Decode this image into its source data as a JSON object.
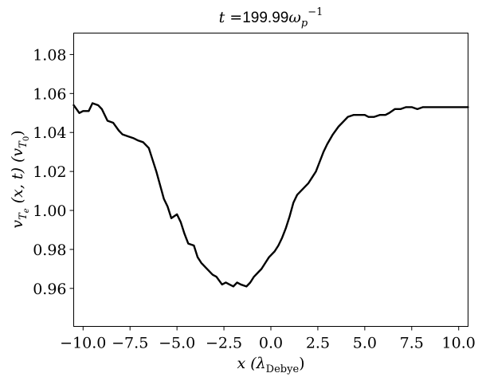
{
  "chart_data": {
    "type": "line",
    "title": {
      "prefix": "t =",
      "value": "199.99",
      "unit_base": "ω",
      "unit_sub": "p",
      "unit_sup": "−1"
    },
    "xlabel": {
      "main": "x (λ",
      "sub": "Debye",
      "close": ")"
    },
    "ylabel": {
      "part1": "v",
      "part1_sub": "T",
      "part1_subsub": "e",
      "part2": " (x, t)  (v",
      "part2_sub": "T",
      "part2_subsub": "0",
      "close": ")"
    },
    "xlim": [
      -10.5,
      10.5
    ],
    "ylim": [
      0.9405,
      1.091
    ],
    "xticks": [
      -10.0,
      -7.5,
      -5.0,
      -2.5,
      0.0,
      2.5,
      5.0,
      7.5,
      10.0
    ],
    "xtick_labels": [
      "−10.0",
      "−7.5",
      "−5.0",
      "−2.5",
      "0.0",
      "2.5",
      "5.0",
      "7.5",
      "10.0"
    ],
    "yticks": [
      0.96,
      0.98,
      1.0,
      1.02,
      1.04,
      1.06,
      1.08
    ],
    "ytick_labels": [
      "0.96",
      "0.98",
      "1.00",
      "1.02",
      "1.04",
      "1.06",
      "1.08"
    ],
    "grid": false,
    "line_color": "#000000",
    "series": [
      {
        "x": [
          -10.5,
          -10.2,
          -10.0,
          -9.7,
          -9.5,
          -9.2,
          -9.0,
          -8.7,
          -8.4,
          -8.1,
          -7.9,
          -7.6,
          -7.3,
          -7.1,
          -6.8,
          -6.5,
          -6.3,
          -6.1,
          -5.9,
          -5.7,
          -5.5,
          -5.3,
          -5.0,
          -4.8,
          -4.6,
          -4.4,
          -4.1,
          -3.9,
          -3.7,
          -3.5,
          -3.3,
          -3.1,
          -2.9,
          -2.6,
          -2.4,
          -2.2,
          -2.0,
          -1.8,
          -1.6,
          -1.3,
          -1.1,
          -0.9,
          -0.7,
          -0.5,
          -0.3,
          -0.1,
          0.2,
          0.4,
          0.6,
          0.8,
          1.0,
          1.2,
          1.4,
          1.6,
          1.8,
          2.0,
          2.2,
          2.4,
          2.6,
          2.8,
          3.0,
          3.3,
          3.6,
          3.9,
          4.1,
          4.4,
          4.7,
          5.0,
          5.2,
          5.5,
          5.8,
          6.1,
          6.3,
          6.6,
          6.9,
          7.2,
          7.5,
          7.8,
          8.1,
          8.4,
          8.7,
          8.9,
          9.2,
          9.5,
          9.8,
          10.1,
          10.3,
          10.5
        ],
        "y": [
          1.054,
          1.05,
          1.051,
          1.051,
          1.055,
          1.054,
          1.052,
          1.046,
          1.045,
          1.041,
          1.039,
          1.038,
          1.037,
          1.036,
          1.035,
          1.032,
          1.026,
          1.02,
          1.013,
          1.006,
          1.002,
          0.996,
          0.998,
          0.994,
          0.988,
          0.983,
          0.982,
          0.976,
          0.973,
          0.971,
          0.969,
          0.967,
          0.966,
          0.962,
          0.963,
          0.962,
          0.961,
          0.963,
          0.962,
          0.961,
          0.963,
          0.966,
          0.968,
          0.97,
          0.973,
          0.976,
          0.979,
          0.982,
          0.986,
          0.991,
          0.997,
          1.004,
          1.008,
          1.01,
          1.012,
          1.014,
          1.017,
          1.02,
          1.025,
          1.03,
          1.034,
          1.039,
          1.043,
          1.046,
          1.048,
          1.049,
          1.049,
          1.049,
          1.048,
          1.048,
          1.049,
          1.049,
          1.05,
          1.052,
          1.052,
          1.053,
          1.053,
          1.052,
          1.053,
          1.053,
          1.053,
          1.053,
          1.053,
          1.053,
          1.053,
          1.053,
          1.053,
          1.053
        ]
      }
    ]
  }
}
